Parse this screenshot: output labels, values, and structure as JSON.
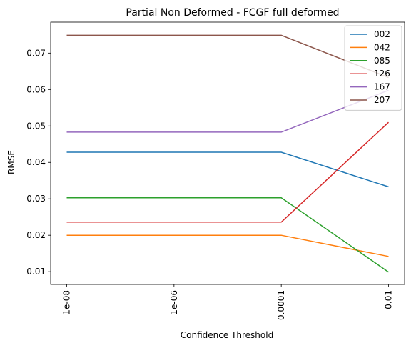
{
  "chart_data": {
    "type": "line",
    "title": "Partial Non Deformed - FCGF full deformed",
    "xlabel": "Confidence Threshold",
    "ylabel": "RMSE",
    "x": [
      "1e-08",
      "1e-06",
      "0.0001",
      "0.01"
    ],
    "x_log_exponents": [
      -8,
      -6,
      -4,
      -2
    ],
    "ylim": [
      0.0065,
      0.0785
    ],
    "yticks": [
      0.01,
      0.02,
      0.03,
      0.04,
      0.05,
      0.06,
      0.07
    ],
    "ytick_labels": [
      "0.01",
      "0.02",
      "0.03",
      "0.04",
      "0.05",
      "0.06",
      "0.07"
    ],
    "grid": false,
    "legend_position": "top-right",
    "series": [
      {
        "name": "002",
        "color": "#1f77b4",
        "values": [
          0.0428,
          0.0428,
          0.0428,
          0.0333
        ]
      },
      {
        "name": "042",
        "color": "#ff7f0e",
        "values": [
          0.02,
          0.02,
          0.02,
          0.0142
        ]
      },
      {
        "name": "085",
        "color": "#2ca02c",
        "values": [
          0.0303,
          0.0303,
          0.0303,
          0.0099
        ]
      },
      {
        "name": "126",
        "color": "#d62728",
        "values": [
          0.0236,
          0.0236,
          0.0236,
          0.051
        ]
      },
      {
        "name": "167",
        "color": "#9467bd",
        "values": [
          0.0483,
          0.0483,
          0.0483,
          0.0598
        ]
      },
      {
        "name": "207",
        "color": "#8c564b",
        "values": [
          0.0749,
          0.0749,
          0.0749,
          0.0633
        ]
      }
    ]
  }
}
